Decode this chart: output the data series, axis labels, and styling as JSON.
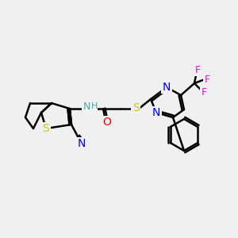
{
  "bg_color": "#f0f0f0",
  "bond_color": "#000000",
  "bond_width": 1.8,
  "atom_colors": {
    "N": "#0000ff",
    "S": "#cccc00",
    "O": "#ff0000",
    "F": "#ff00ff",
    "C": "#000000",
    "H": "#4aa8a8"
  },
  "font_size": 9,
  "title": ""
}
